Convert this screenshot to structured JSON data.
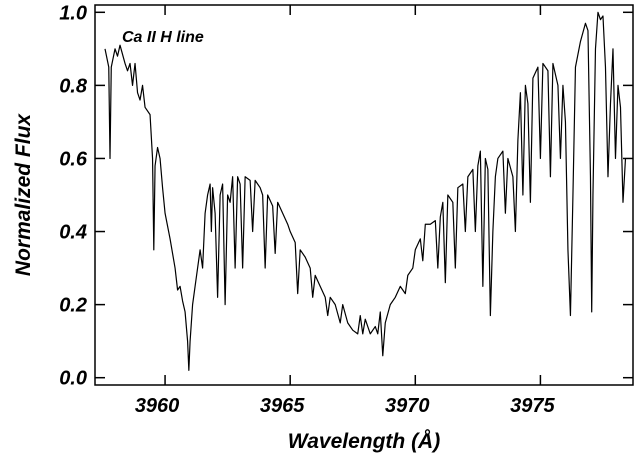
{
  "chart_data": {
    "type": "line",
    "annotation": "Ca II H line",
    "x_label": "Wavelength (Å)",
    "y_label": "Normalized Flux",
    "xlim": [
      3957.2,
      3978.7
    ],
    "ylim": [
      -0.02,
      1.02
    ],
    "xticks": [
      3960,
      3965,
      3970,
      3975
    ],
    "yticks": [
      {
        "value": 0,
        "label": "0.0"
      },
      0.2,
      0.4,
      0.6,
      0.8,
      {
        "value": 1,
        "label": "1.0"
      }
    ],
    "x": [
      3957.6,
      3957.75,
      3957.8,
      3957.85,
      3958.0,
      3958.1,
      3958.2,
      3958.4,
      3958.5,
      3958.6,
      3958.7,
      3958.8,
      3958.9,
      3959.0,
      3959.1,
      3959.2,
      3959.4,
      3959.5,
      3959.55,
      3959.6,
      3959.7,
      3959.8,
      3959.9,
      3960.0,
      3960.2,
      3960.4,
      3960.5,
      3960.6,
      3960.7,
      3960.8,
      3960.9,
      3960.95,
      3961.0,
      3961.1,
      3961.2,
      3961.4,
      3961.5,
      3961.6,
      3961.7,
      3961.8,
      3961.85,
      3961.9,
      3962.0,
      3962.1,
      3962.2,
      3962.3,
      3962.4,
      3962.5,
      3962.6,
      3962.7,
      3962.8,
      3962.9,
      3963.0,
      3963.1,
      3963.2,
      3963.4,
      3963.5,
      3963.6,
      3963.8,
      3963.9,
      3964.0,
      3964.1,
      3964.3,
      3964.4,
      3964.5,
      3964.7,
      3964.9,
      3965.0,
      3965.2,
      3965.3,
      3965.4,
      3965.6,
      3965.8,
      3965.9,
      3966.0,
      3966.2,
      3966.4,
      3966.5,
      3966.6,
      3966.8,
      3967.0,
      3967.1,
      3967.3,
      3967.5,
      3967.7,
      3967.8,
      3967.9,
      3968.0,
      3968.2,
      3968.4,
      3968.5,
      3968.6,
      3968.7,
      3968.8,
      3969.0,
      3969.2,
      3969.4,
      3969.6,
      3969.7,
      3969.9,
      3970.0,
      3970.2,
      3970.3,
      3970.4,
      3970.6,
      3970.8,
      3970.9,
      3971.0,
      3971.1,
      3971.2,
      3971.3,
      3971.5,
      3971.6,
      3971.7,
      3971.9,
      3972.0,
      3972.1,
      3972.3,
      3972.4,
      3972.5,
      3972.6,
      3972.7,
      3972.8,
      3972.9,
      3973.0,
      3973.1,
      3973.2,
      3973.3,
      3973.5,
      3973.6,
      3973.7,
      3973.9,
      3974.0,
      3974.1,
      3974.2,
      3974.3,
      3974.4,
      3974.5,
      3974.6,
      3974.7,
      3974.9,
      3975.0,
      3975.1,
      3975.3,
      3975.4,
      3975.5,
      3975.7,
      3975.8,
      3975.9,
      3976.0,
      3976.1,
      3976.2,
      3976.3,
      3976.4,
      3976.6,
      3976.8,
      3976.9,
      3977.0,
      3977.05,
      3977.1,
      3977.2,
      3977.3,
      3977.4,
      3977.5,
      3977.6,
      3977.7,
      3977.8,
      3977.9,
      3978.0,
      3978.1,
      3978.2,
      3978.3,
      3978.4
    ],
    "series": [
      {
        "color": "#000000",
        "values": [
          0.9,
          0.85,
          0.6,
          0.85,
          0.9,
          0.88,
          0.91,
          0.86,
          0.84,
          0.86,
          0.8,
          0.86,
          0.78,
          0.76,
          0.8,
          0.74,
          0.72,
          0.6,
          0.35,
          0.58,
          0.63,
          0.6,
          0.52,
          0.45,
          0.38,
          0.3,
          0.24,
          0.25,
          0.21,
          0.18,
          0.1,
          0.02,
          0.1,
          0.2,
          0.25,
          0.35,
          0.3,
          0.45,
          0.5,
          0.53,
          0.4,
          0.52,
          0.45,
          0.22,
          0.5,
          0.53,
          0.2,
          0.5,
          0.48,
          0.55,
          0.3,
          0.55,
          0.53,
          0.3,
          0.55,
          0.54,
          0.4,
          0.54,
          0.52,
          0.5,
          0.3,
          0.5,
          0.47,
          0.34,
          0.48,
          0.45,
          0.42,
          0.4,
          0.37,
          0.23,
          0.35,
          0.33,
          0.3,
          0.22,
          0.28,
          0.25,
          0.22,
          0.17,
          0.22,
          0.2,
          0.15,
          0.2,
          0.15,
          0.13,
          0.12,
          0.17,
          0.12,
          0.16,
          0.12,
          0.14,
          0.12,
          0.18,
          0.06,
          0.15,
          0.2,
          0.22,
          0.25,
          0.23,
          0.28,
          0.3,
          0.35,
          0.38,
          0.32,
          0.42,
          0.42,
          0.43,
          0.3,
          0.44,
          0.48,
          0.26,
          0.5,
          0.48,
          0.3,
          0.52,
          0.53,
          0.4,
          0.55,
          0.57,
          0.4,
          0.58,
          0.62,
          0.25,
          0.6,
          0.57,
          0.17,
          0.4,
          0.55,
          0.6,
          0.62,
          0.45,
          0.6,
          0.55,
          0.4,
          0.65,
          0.78,
          0.5,
          0.8,
          0.75,
          0.48,
          0.82,
          0.85,
          0.6,
          0.86,
          0.84,
          0.55,
          0.86,
          0.8,
          0.6,
          0.8,
          0.7,
          0.35,
          0.17,
          0.5,
          0.85,
          0.92,
          0.97,
          0.95,
          0.55,
          0.18,
          0.5,
          0.9,
          1.0,
          0.98,
          0.99,
          0.85,
          0.55,
          0.75,
          0.9,
          0.6,
          0.8,
          0.74,
          0.48,
          0.6
        ]
      }
    ]
  }
}
